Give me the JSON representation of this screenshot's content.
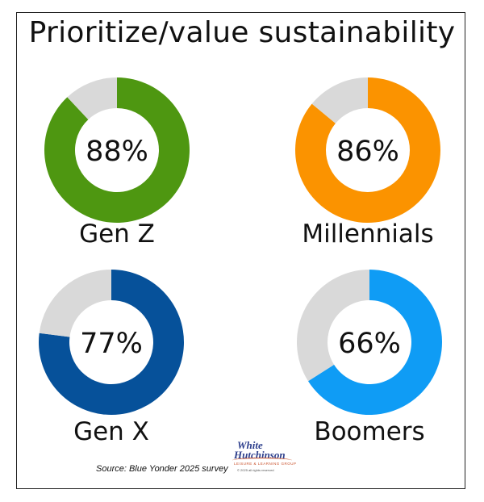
{
  "title": "Prioritize/value sustainability",
  "source": "Source: Blue Yonder 2025 survey",
  "logo": {
    "line1": "White",
    "line2": "Hutchinson",
    "line3": "LEISURE & LEARNING GROUP",
    "line4": "© 2025 all rights reserved"
  },
  "colors": {
    "remainder": "#d9d9d9"
  },
  "chart_data": {
    "type": "donut",
    "title": "Prioritize/value sustainability",
    "series": [
      {
        "name": "Gen Z",
        "value": 88,
        "label": "88%",
        "color": "#4e9711"
      },
      {
        "name": "Millennials",
        "value": 86,
        "label": "86%",
        "color": "#fb9300"
      },
      {
        "name": "Gen X",
        "value": 77,
        "label": "77%",
        "color": "#06519a"
      },
      {
        "name": "Boomers",
        "value": 66,
        "label": "66%",
        "color": "#0f9cf5"
      }
    ]
  }
}
